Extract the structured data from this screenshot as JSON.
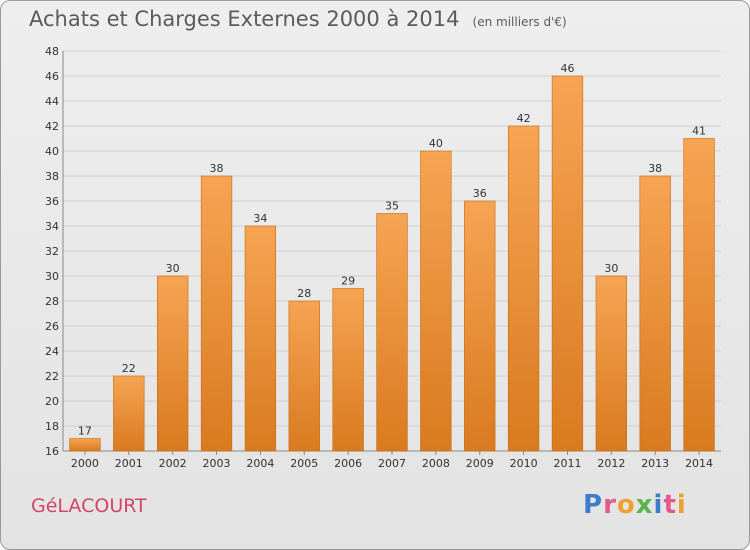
{
  "title": "Achats et Charges Externes 2000 à 2014",
  "subtitle": "(en milliers d'€)",
  "commune": "GéLACOURT",
  "brand": {
    "letters": [
      {
        "ch": "P",
        "color": "#3b7ccb"
      },
      {
        "ch": "r",
        "color": "#e05a8a"
      },
      {
        "ch": "o",
        "color": "#f0a030"
      },
      {
        "ch": "x",
        "color": "#58b548"
      },
      {
        "ch": "i",
        "color": "#3b7ccb"
      },
      {
        "ch": "t",
        "color": "#e05a8a"
      },
      {
        "ch": "i",
        "color": "#f0a030"
      }
    ]
  },
  "colors": {
    "bar_top": "#f6a453",
    "bar_bottom": "#d97a1f",
    "bar_edge": "#c86a10",
    "grid": "#cfcfcf"
  },
  "chart_data": {
    "type": "bar",
    "categories": [
      "2000",
      "2001",
      "2002",
      "2003",
      "2004",
      "2005",
      "2006",
      "2007",
      "2008",
      "2009",
      "2010",
      "2011",
      "2012",
      "2013",
      "2014"
    ],
    "values": [
      17,
      22,
      30,
      38,
      34,
      28,
      29,
      35,
      40,
      36,
      42,
      46,
      30,
      38,
      41
    ],
    "ylim": [
      16,
      48
    ],
    "yticks": [
      16,
      18,
      20,
      22,
      24,
      26,
      28,
      30,
      32,
      34,
      36,
      38,
      40,
      42,
      44,
      46,
      48
    ],
    "grid": true,
    "xlabel": "",
    "ylabel": ""
  }
}
